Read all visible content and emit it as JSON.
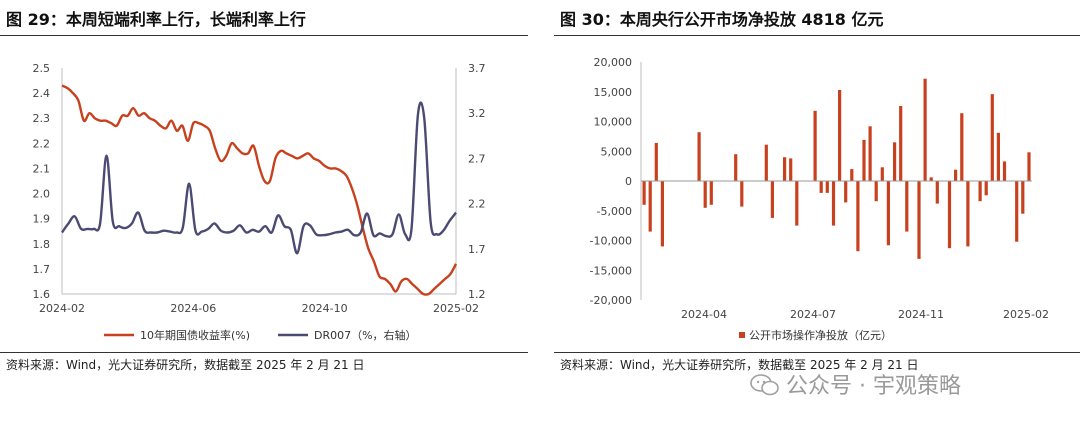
{
  "panels": [
    {
      "title": "图 29：本周短端利率上行，长端利率上行",
      "source": "资料来源：Wind，光大证券研究所，数据截至 2025 年 2 月 21 日"
    },
    {
      "title": "图 30：本周央行公开市场净投放 4818 亿元",
      "source": "资料来源：Wind，光大证券研究所，数据截至 2025 年 2 月 21 日"
    }
  ],
  "watermark": "公众号 · 宇观策略",
  "colors": {
    "red": "#C8411F",
    "navy": "#4B4A72",
    "axis": "#bfbfbf"
  },
  "chart_data": [
    {
      "type": "line",
      "x_ticks": [
        "2024-02",
        "2024-06",
        "2024-10",
        "2025-02"
      ],
      "y_left": {
        "range": [
          1.6,
          2.5
        ],
        "ticks": [
          "2.5",
          "2.4",
          "2.3",
          "2.2",
          "2.1",
          "2.0",
          "1.9",
          "1.8",
          "1.7",
          "1.6"
        ]
      },
      "y_right": {
        "range": [
          1.2,
          3.7
        ],
        "ticks": [
          "3.7",
          "3.2",
          "2.7",
          "2.2",
          "1.7",
          "1.2"
        ]
      },
      "legend_position": "bottom",
      "series": [
        {
          "name": "10年期国债收益率(%)",
          "axis": "left",
          "color": "#C8411F",
          "values": [
            2.43,
            2.42,
            2.4,
            2.37,
            2.29,
            2.32,
            2.3,
            2.29,
            2.29,
            2.28,
            2.27,
            2.31,
            2.31,
            2.34,
            2.31,
            2.32,
            2.3,
            2.29,
            2.27,
            2.26,
            2.29,
            2.25,
            2.27,
            2.21,
            2.28,
            2.28,
            2.27,
            2.25,
            2.18,
            2.13,
            2.15,
            2.2,
            2.18,
            2.16,
            2.16,
            2.19,
            2.11,
            2.05,
            2.05,
            2.14,
            2.17,
            2.16,
            2.15,
            2.14,
            2.15,
            2.16,
            2.14,
            2.13,
            2.11,
            2.1,
            2.1,
            2.09,
            2.07,
            2.02,
            1.95,
            1.86,
            1.78,
            1.73,
            1.67,
            1.66,
            1.64,
            1.61,
            1.65,
            1.66,
            1.64,
            1.62,
            1.6,
            1.6,
            1.62,
            1.64,
            1.66,
            1.68,
            1.72
          ]
        },
        {
          "name": "DR007（%，右轴）",
          "axis": "right",
          "color": "#4B4A72",
          "values": [
            1.88,
            1.98,
            2.06,
            1.92,
            1.92,
            1.92,
            1.98,
            2.73,
            2.0,
            1.95,
            1.93,
            1.98,
            2.1,
            1.9,
            1.88,
            1.88,
            1.9,
            1.89,
            1.88,
            1.93,
            2.42,
            1.9,
            1.89,
            1.92,
            1.98,
            1.9,
            1.88,
            1.9,
            1.96,
            1.88,
            1.91,
            1.89,
            1.95,
            1.88,
            2.07,
            1.95,
            1.91,
            1.65,
            1.95,
            1.96,
            1.86,
            1.85,
            1.86,
            1.88,
            1.89,
            1.91,
            1.85,
            1.88,
            2.09,
            1.85,
            1.87,
            1.84,
            1.86,
            2.08,
            1.86,
            1.92,
            3.18,
            3.15,
            2.0,
            1.86,
            1.9,
            2.01,
            2.1
          ]
        }
      ]
    },
    {
      "type": "bar",
      "y_range": [
        -20000,
        20000
      ],
      "y_ticks": [
        "20,000",
        "15,000",
        "10,000",
        "5,000",
        "0",
        "-5,000",
        "-10,000",
        "-15,000",
        "-20,000"
      ],
      "x_ticks": [
        "2024-04",
        "2024-07",
        "2024-11",
        "2025-02"
      ],
      "legend_position": "bottom",
      "series": [
        {
          "name": "公开市场操作净投放（亿元）",
          "color": "#C8411F",
          "values": [
            -4000,
            -8500,
            6400,
            -11000,
            0,
            0,
            0,
            0,
            0,
            8200,
            -4500,
            -4000,
            0,
            0,
            0,
            4500,
            -4300,
            0,
            0,
            0,
            6100,
            -6200,
            0,
            4000,
            3800,
            -7500,
            0,
            0,
            11800,
            -2000,
            -2000,
            -7500,
            15300,
            -3600,
            2000,
            -11800,
            6900,
            9200,
            -3400,
            2300,
            -10800,
            6500,
            12600,
            -8500,
            0,
            -13100,
            17200,
            600,
            -3800,
            0,
            -11300,
            1900,
            11400,
            -11000,
            0,
            -3400,
            -2400,
            14600,
            8100,
            3300,
            0,
            -10200,
            -5500,
            4818
          ]
        }
      ]
    }
  ]
}
